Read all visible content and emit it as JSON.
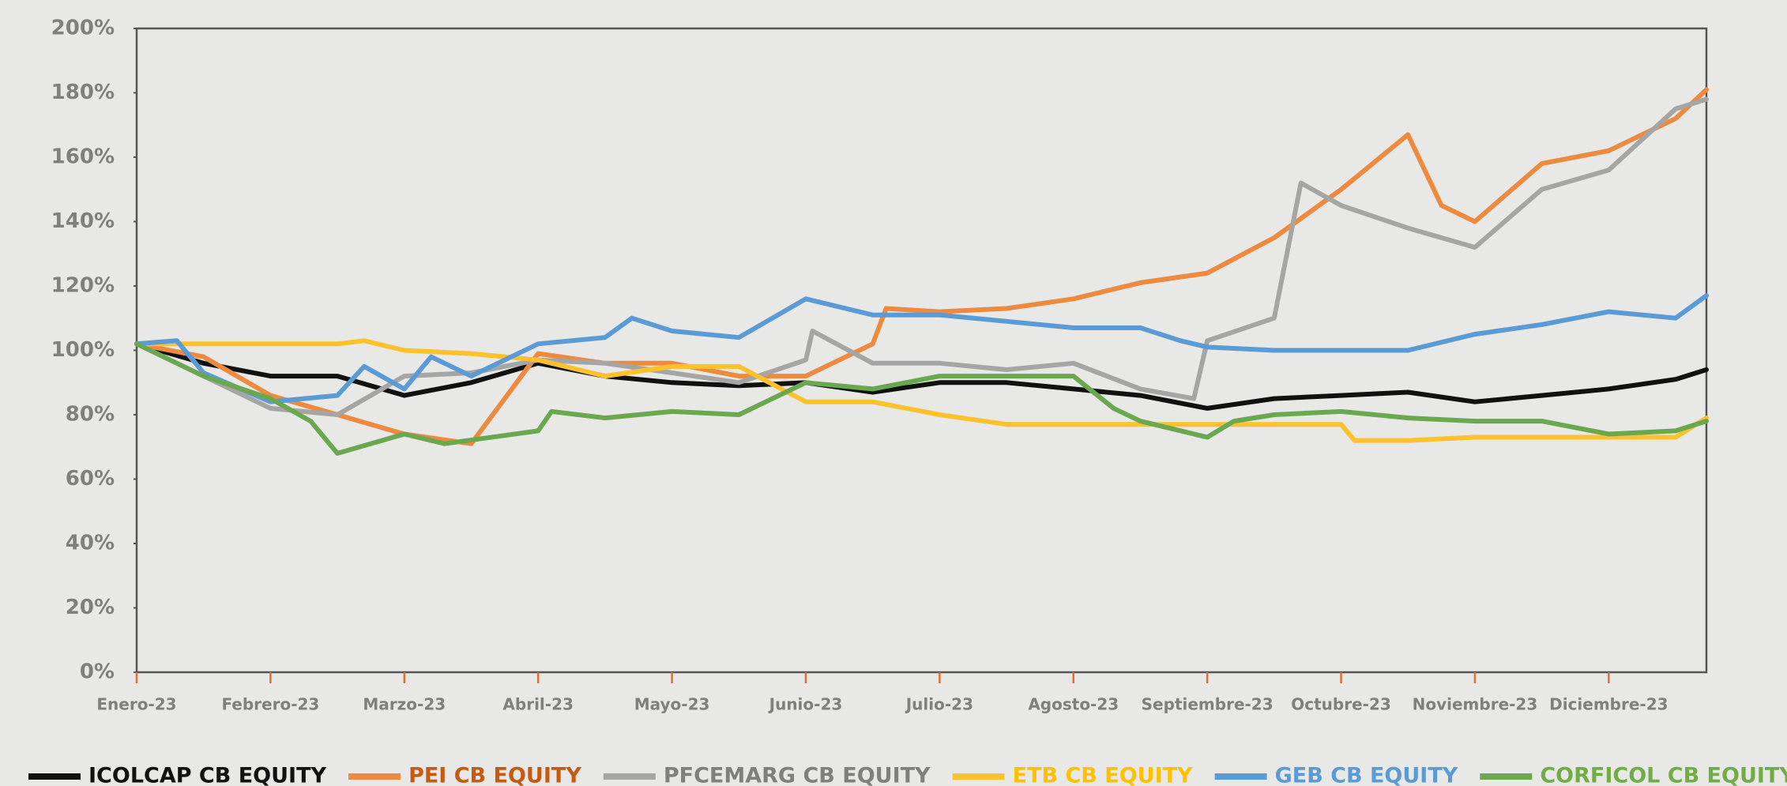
{
  "chart_data": {
    "type": "line",
    "ylim": [
      0,
      200
    ],
    "yticks": [
      {
        "value": 0,
        "label": "0%"
      },
      {
        "value": 20,
        "label": "20%"
      },
      {
        "value": 40,
        "label": "40%"
      },
      {
        "value": 60,
        "label": "60%"
      },
      {
        "value": 80,
        "label": "80%"
      },
      {
        "value": 100,
        "label": "100%"
      },
      {
        "value": 120,
        "label": "120%"
      },
      {
        "value": 140,
        "label": "140%"
      },
      {
        "value": 160,
        "label": "160%"
      },
      {
        "value": 180,
        "label": "180%"
      },
      {
        "value": 200,
        "label": "200%"
      }
    ],
    "xlim": [
      0,
      11.73
    ],
    "xticks": [
      {
        "value": 0,
        "label": "Enero-23"
      },
      {
        "value": 1,
        "label": "Febrero-23"
      },
      {
        "value": 2,
        "label": "Marzo-23"
      },
      {
        "value": 3,
        "label": "Abril-23"
      },
      {
        "value": 4,
        "label": "Mayo-23"
      },
      {
        "value": 5,
        "label": "Junio-23"
      },
      {
        "value": 6,
        "label": "Julio-23"
      },
      {
        "value": 7,
        "label": "Agosto-23"
      },
      {
        "value": 8,
        "label": "Septiembre-23"
      },
      {
        "value": 9,
        "label": "Octubre-23"
      },
      {
        "value": 10,
        "label": "Noviembre-23"
      },
      {
        "value": 11,
        "label": "Diciembre-23"
      }
    ],
    "series": [
      {
        "name": "ICOLCAP CB EQUITY",
        "color": "#111111",
        "legend_color": "#111111",
        "x": [
          0,
          0.5,
          1,
          1.5,
          2,
          2.5,
          3,
          3.5,
          4,
          4.5,
          5,
          5.5,
          6,
          6.5,
          7,
          7.5,
          8,
          8.5,
          9,
          9.5,
          10,
          10.5,
          11,
          11.5,
          11.73
        ],
        "values": [
          102,
          96,
          92,
          92,
          86,
          90,
          96,
          92,
          90,
          89,
          90,
          87,
          90,
          90,
          88,
          86,
          82,
          85,
          86,
          87,
          84,
          86,
          88,
          91,
          94
        ]
      },
      {
        "name": "PEI CB EQUITY",
        "color": "#ed8a3f",
        "legend_color": "#c55a11",
        "x": [
          0,
          0.5,
          1,
          1.5,
          2,
          2.5,
          3,
          3.5,
          4,
          4.5,
          5,
          5.5,
          5.6,
          6,
          6.5,
          7,
          7.5,
          8,
          8.5,
          9,
          9.5,
          9.75,
          10,
          10.5,
          11,
          11.5,
          11.73
        ],
        "values": [
          102,
          98,
          86,
          80,
          74,
          71,
          99,
          96,
          96,
          92,
          92,
          102,
          113,
          112,
          113,
          116,
          121,
          124,
          135,
          150,
          167,
          145,
          140,
          158,
          162,
          172,
          181
        ]
      },
      {
        "name": "PFCEMARG CB EQUITY",
        "color": "#a5a5a5",
        "legend_color": "#7f7f7f",
        "x": [
          0,
          0.5,
          1,
          1.5,
          2,
          2.5,
          3,
          3.5,
          4,
          4.5,
          5,
          5.05,
          5.5,
          6,
          6.5,
          7,
          7.5,
          7.9,
          8,
          8.5,
          8.7,
          9,
          9.5,
          10,
          10.5,
          11,
          11.5,
          11.73
        ],
        "values": [
          102,
          92,
          82,
          80,
          92,
          93,
          97,
          96,
          93,
          90,
          97,
          106,
          96,
          96,
          94,
          96,
          88,
          85,
          103,
          110,
          152,
          145,
          138,
          132,
          150,
          156,
          175,
          178
        ]
      },
      {
        "name": "ETB CB EQUITY",
        "color": "#fcc22d",
        "legend_color": "#ffc000",
        "x": [
          0,
          0.5,
          1,
          1.5,
          1.7,
          2,
          2.5,
          3,
          3.5,
          4,
          4.5,
          5,
          5.5,
          6,
          6.5,
          7,
          7.5,
          8,
          8.5,
          9,
          9.1,
          9.5,
          10,
          11,
          11.5,
          11.73
        ],
        "values": [
          102,
          102,
          102,
          102,
          103,
          100,
          99,
          97,
          92,
          95,
          95,
          84,
          84,
          80,
          77,
          77,
          77,
          77,
          77,
          77,
          72,
          72,
          73,
          73,
          73,
          79
        ]
      },
      {
        "name": "GEB CB EQUITY",
        "color": "#5b9bd5",
        "legend_color": "#5b9bd5",
        "x": [
          0,
          0.3,
          0.5,
          1,
          1.5,
          1.7,
          2,
          2.2,
          2.5,
          3,
          3.5,
          3.7,
          4,
          4.5,
          5,
          5.5,
          6,
          6.5,
          7,
          7.5,
          7.8,
          8,
          8.5,
          9,
          9.5,
          10,
          10.5,
          11,
          11.5,
          11.73
        ],
        "values": [
          102,
          103,
          93,
          84,
          86,
          95,
          88,
          98,
          92,
          102,
          104,
          110,
          106,
          104,
          116,
          111,
          111,
          109,
          107,
          107,
          103,
          101,
          100,
          100,
          100,
          105,
          108,
          112,
          110,
          117
        ]
      },
      {
        "name": "CORFICOL CB EQUITY",
        "color": "#6aa84f",
        "legend_color": "#70ad47",
        "x": [
          0,
          0.5,
          1,
          1.3,
          1.5,
          2,
          2.3,
          3,
          3.1,
          3.5,
          4,
          4.5,
          5,
          5.5,
          6,
          6.5,
          7,
          7.3,
          7.5,
          8,
          8.2,
          8.5,
          9,
          9.5,
          10,
          10.5,
          11,
          11.5,
          11.73
        ],
        "values": [
          102,
          92,
          85,
          78,
          68,
          74,
          71,
          75,
          81,
          79,
          81,
          80,
          90,
          88,
          92,
          92,
          92,
          82,
          78,
          73,
          78,
          80,
          81,
          79,
          78,
          78,
          74,
          75,
          78
        ]
      }
    ]
  }
}
